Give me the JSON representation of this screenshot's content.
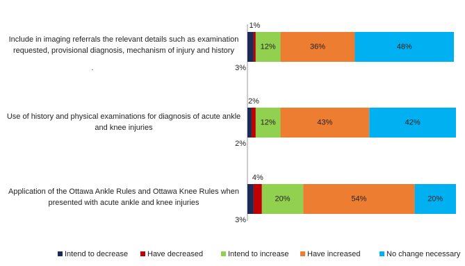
{
  "chart_data": {
    "type": "stacked-bar-horizontal",
    "categories": [
      "Include in imaging referrals the relevant details such as examination requested, provisional diagnosis, mechanism of injury and history",
      "Use of history and physical examinations for diagnosis of acute ankle and knee injuries",
      "Application of the Ottawa Ankle Rules and Ottawa Knee Rules when presented with acute ankle and knee injuries"
    ],
    "annotation": ".",
    "series": [
      {
        "name": "Intend to decrease",
        "color": "#1b2a57",
        "values": [
          3,
          2,
          3
        ],
        "value_labels": [
          "3%",
          "2%",
          "3%"
        ]
      },
      {
        "name": "Have decreased",
        "color": "#c00000",
        "values": [
          1,
          2,
          4
        ],
        "value_labels": [
          "1%",
          "2%",
          "4%"
        ]
      },
      {
        "name": "Intend to increase",
        "color": "#92d050",
        "values": [
          12,
          12,
          20
        ],
        "value_labels": [
          "12%",
          "12%",
          "20%"
        ]
      },
      {
        "name": "Have increased",
        "color": "#ed7d31",
        "values": [
          36,
          43,
          54
        ],
        "value_labels": [
          "36%",
          "43%",
          "54%"
        ]
      },
      {
        "name": "No change necessary",
        "color": "#00b0f0",
        "values": [
          48,
          42,
          20
        ],
        "value_labels": [
          "48%",
          "42%",
          "20%"
        ]
      }
    ]
  }
}
